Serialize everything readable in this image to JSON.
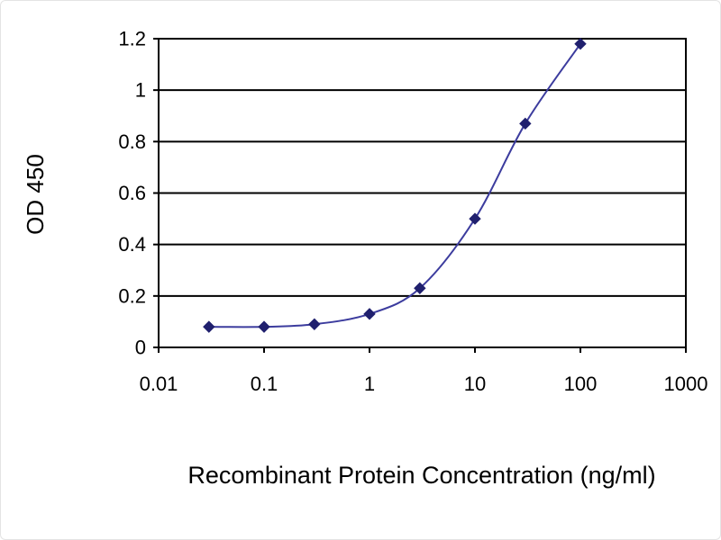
{
  "page": {
    "background": "#ffffff"
  },
  "chart_data": {
    "type": "scatter",
    "title": "",
    "xlabel": "Recombinant Protein Concentration (ng/ml)",
    "ylabel": "OD 450",
    "x_scale": "log",
    "xlim": [
      0.01,
      1000
    ],
    "ylim": [
      0,
      1.2
    ],
    "x_ticks": [
      0.01,
      0.1,
      1,
      10,
      100,
      1000
    ],
    "x_tick_labels": [
      "0.01",
      "0.1",
      "1",
      "10",
      "100",
      "1000"
    ],
    "y_ticks": [
      0,
      0.2,
      0.4,
      0.6,
      0.8,
      1,
      1.2
    ],
    "y_tick_labels": [
      "0",
      "0.2",
      "0.4",
      "0.6",
      "0.8",
      "1",
      "1.2"
    ],
    "grid": "horizontal",
    "legend": "none",
    "colors": {
      "line": "#3c3c9e",
      "marker": "#20206e",
      "grid": "#000000",
      "text": "#000000"
    },
    "series": [
      {
        "name": "OD450",
        "marker": "diamond",
        "points": [
          {
            "x": 0.03,
            "y": 0.08
          },
          {
            "x": 0.1,
            "y": 0.08
          },
          {
            "x": 0.3,
            "y": 0.09
          },
          {
            "x": 1,
            "y": 0.13
          },
          {
            "x": 3,
            "y": 0.23
          },
          {
            "x": 10,
            "y": 0.5
          },
          {
            "x": 30,
            "y": 0.87
          },
          {
            "x": 100,
            "y": 1.18
          }
        ]
      }
    ]
  }
}
